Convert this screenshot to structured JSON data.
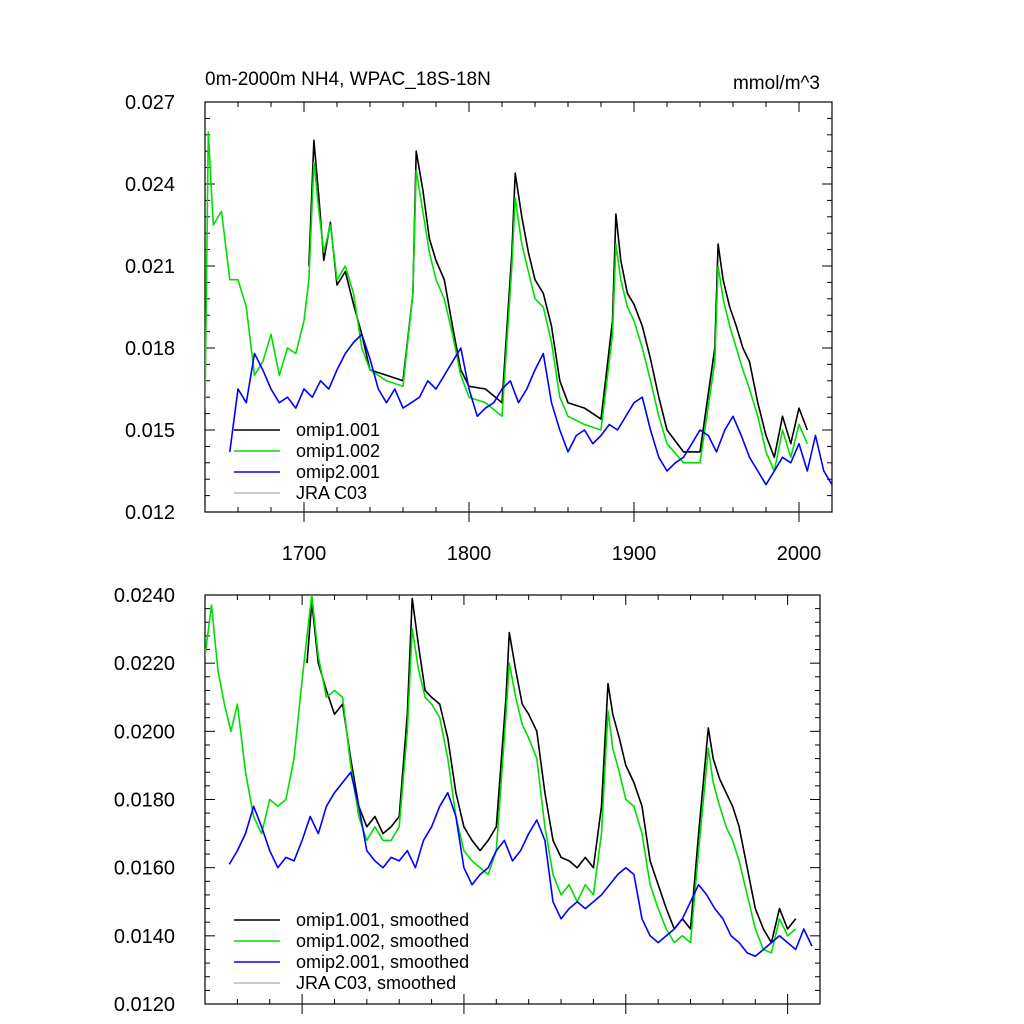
{
  "chart_data": [
    {
      "type": "line",
      "title_left": "0m-2000m NH4, WPAC_18S-18N",
      "title_right": "mmol/m^3",
      "xlim": [
        1640,
        2020
      ],
      "ylim": [
        0.012,
        0.027
      ],
      "yticks": [
        0.012,
        0.015,
        0.018,
        0.021,
        0.024,
        0.027
      ],
      "ytick_labels": [
        "0.012",
        "0.015",
        "0.018",
        "0.021",
        "0.024",
        "0.027"
      ],
      "xticks": [
        1700,
        1800,
        1900,
        2000
      ],
      "xtick_labels": [
        "1700",
        "1800",
        "1900",
        "2000"
      ],
      "legend": [
        "omip1.001",
        "omip1.002",
        "omip2.001",
        "JRA C03"
      ],
      "series": [
        {
          "name": "omip1.001",
          "color": "#000000",
          "x": [
            1703,
            1706,
            1709,
            1712,
            1716,
            1720,
            1725,
            1730,
            1735,
            1740,
            1750,
            1760,
            1766,
            1768,
            1772,
            1776,
            1780,
            1785,
            1790,
            1795,
            1800,
            1810,
            1820,
            1826,
            1828,
            1832,
            1836,
            1840,
            1845,
            1850,
            1855,
            1860,
            1870,
            1880,
            1887,
            1889,
            1892,
            1896,
            1900,
            1905,
            1910,
            1915,
            1920,
            1930,
            1940,
            1949,
            1951,
            1954,
            1958,
            1962,
            1966,
            1970,
            1975,
            1980,
            1985,
            1990,
            1995,
            2000,
            2005
          ],
          "values": [
            0.021,
            0.0256,
            0.0235,
            0.0212,
            0.0226,
            0.0203,
            0.0208,
            0.0196,
            0.0185,
            0.0172,
            0.017,
            0.0168,
            0.02,
            0.0252,
            0.0238,
            0.022,
            0.0212,
            0.0205,
            0.0188,
            0.0172,
            0.0166,
            0.0165,
            0.016,
            0.0215,
            0.0244,
            0.0228,
            0.0215,
            0.0205,
            0.02,
            0.0188,
            0.0168,
            0.016,
            0.0158,
            0.0154,
            0.019,
            0.0229,
            0.0212,
            0.02,
            0.0196,
            0.0188,
            0.0176,
            0.0162,
            0.015,
            0.0142,
            0.0142,
            0.018,
            0.0218,
            0.0205,
            0.0195,
            0.0188,
            0.018,
            0.0175,
            0.016,
            0.0148,
            0.014,
            0.0155,
            0.0145,
            0.0158,
            0.015
          ]
        },
        {
          "name": "omip1.002",
          "color": "#00dd00",
          "x": [
            1640,
            1642,
            1645,
            1650,
            1655,
            1660,
            1665,
            1670,
            1675,
            1680,
            1685,
            1690,
            1695,
            1700,
            1703,
            1706,
            1709,
            1712,
            1716,
            1720,
            1725,
            1730,
            1735,
            1740,
            1750,
            1760,
            1766,
            1768,
            1772,
            1776,
            1780,
            1785,
            1790,
            1795,
            1800,
            1810,
            1820,
            1826,
            1828,
            1832,
            1836,
            1840,
            1845,
            1850,
            1855,
            1860,
            1870,
            1880,
            1887,
            1889,
            1892,
            1896,
            1900,
            1905,
            1910,
            1915,
            1920,
            1930,
            1940,
            1949,
            1951,
            1954,
            1958,
            1962,
            1966,
            1970,
            1975,
            1980,
            1985,
            1990,
            1995,
            2000,
            2005
          ],
          "values": [
            0.0158,
            0.0259,
            0.0225,
            0.023,
            0.0205,
            0.0205,
            0.0195,
            0.017,
            0.0175,
            0.0185,
            0.017,
            0.018,
            0.0178,
            0.019,
            0.0205,
            0.0248,
            0.023,
            0.0215,
            0.0225,
            0.0205,
            0.021,
            0.02,
            0.018,
            0.0172,
            0.0168,
            0.0166,
            0.02,
            0.0245,
            0.023,
            0.0215,
            0.0205,
            0.0198,
            0.0185,
            0.017,
            0.0162,
            0.016,
            0.0155,
            0.021,
            0.0235,
            0.0218,
            0.0208,
            0.0198,
            0.0195,
            0.0182,
            0.0162,
            0.0155,
            0.0152,
            0.015,
            0.0185,
            0.0218,
            0.0205,
            0.0195,
            0.019,
            0.018,
            0.0168,
            0.0155,
            0.0145,
            0.0138,
            0.0138,
            0.0175,
            0.021,
            0.0198,
            0.0188,
            0.018,
            0.0172,
            0.0165,
            0.0155,
            0.0142,
            0.0135,
            0.015,
            0.014,
            0.0152,
            0.0145
          ]
        },
        {
          "name": "omip2.001",
          "color": "#0000ff",
          "x": [
            1655,
            1660,
            1665,
            1670,
            1675,
            1680,
            1685,
            1690,
            1695,
            1700,
            1705,
            1710,
            1715,
            1720,
            1725,
            1730,
            1735,
            1740,
            1745,
            1750,
            1755,
            1760,
            1765,
            1770,
            1775,
            1780,
            1785,
            1790,
            1795,
            1800,
            1805,
            1810,
            1815,
            1820,
            1825,
            1830,
            1835,
            1840,
            1845,
            1850,
            1855,
            1860,
            1865,
            1870,
            1875,
            1880,
            1885,
            1890,
            1895,
            1900,
            1905,
            1910,
            1915,
            1920,
            1925,
            1930,
            1935,
            1940,
            1945,
            1950,
            1955,
            1960,
            1965,
            1970,
            1975,
            1980,
            1985,
            1990,
            1995,
            2000,
            2005,
            2010,
            2015,
            2020
          ],
          "values": [
            0.0142,
            0.0165,
            0.016,
            0.0178,
            0.0172,
            0.0165,
            0.016,
            0.0162,
            0.0158,
            0.0165,
            0.0162,
            0.0168,
            0.0165,
            0.0172,
            0.0178,
            0.0182,
            0.0185,
            0.0176,
            0.0165,
            0.016,
            0.0165,
            0.0158,
            0.016,
            0.0162,
            0.0168,
            0.0165,
            0.017,
            0.0175,
            0.018,
            0.0165,
            0.0155,
            0.0158,
            0.016,
            0.0165,
            0.0168,
            0.016,
            0.0165,
            0.0172,
            0.0178,
            0.016,
            0.015,
            0.0142,
            0.0148,
            0.015,
            0.0145,
            0.0148,
            0.0152,
            0.015,
            0.0155,
            0.016,
            0.0162,
            0.015,
            0.014,
            0.0135,
            0.0138,
            0.014,
            0.0145,
            0.015,
            0.0148,
            0.0142,
            0.015,
            0.0155,
            0.0148,
            0.014,
            0.0135,
            0.013,
            0.0135,
            0.014,
            0.0138,
            0.0145,
            0.0135,
            0.0148,
            0.0135,
            0.013
          ]
        },
        {
          "name": "JRA C03",
          "color": "#bbbbbb",
          "x": [],
          "values": []
        }
      ]
    },
    {
      "type": "line",
      "title_left": "",
      "title_right": "",
      "xlim": [
        1640,
        2020
      ],
      "ylim": [
        0.012,
        0.024
      ],
      "yticks": [
        0.012,
        0.014,
        0.016,
        0.018,
        0.02,
        0.022,
        0.024
      ],
      "ytick_labels": [
        "0.0120",
        "0.0140",
        "0.0160",
        "0.0180",
        "0.0200",
        "0.0220",
        "0.0240"
      ],
      "xticks": [
        1700,
        1800,
        1900,
        2000
      ],
      "xtick_labels": [],
      "legend": [
        "omip1.001, smoothed",
        "omip1.002, smoothed",
        "omip2.001, smoothed",
        "JRA C03, smoothed"
      ],
      "series": [
        {
          "name": "omip1.001, smoothed",
          "color": "#000000",
          "x": [
            1703,
            1706,
            1710,
            1715,
            1720,
            1725,
            1730,
            1735,
            1740,
            1745,
            1750,
            1755,
            1760,
            1765,
            1768,
            1772,
            1776,
            1780,
            1785,
            1790,
            1795,
            1800,
            1805,
            1810,
            1815,
            1820,
            1826,
            1828,
            1832,
            1836,
            1840,
            1845,
            1850,
            1855,
            1860,
            1865,
            1870,
            1875,
            1880,
            1885,
            1889,
            1892,
            1896,
            1900,
            1905,
            1910,
            1915,
            1920,
            1925,
            1930,
            1935,
            1940,
            1945,
            1951,
            1954,
            1958,
            1962,
            1966,
            1970,
            1975,
            1980,
            1985,
            1990,
            1995,
            2000,
            2005
          ],
          "values": [
            0.022,
            0.0238,
            0.022,
            0.0212,
            0.0205,
            0.0208,
            0.0192,
            0.0178,
            0.0172,
            0.0175,
            0.017,
            0.0172,
            0.0175,
            0.0205,
            0.0239,
            0.0225,
            0.0212,
            0.021,
            0.0208,
            0.0198,
            0.0182,
            0.0172,
            0.0168,
            0.0165,
            0.0168,
            0.0172,
            0.021,
            0.0229,
            0.0218,
            0.0208,
            0.0205,
            0.02,
            0.0182,
            0.0168,
            0.0163,
            0.0162,
            0.016,
            0.0163,
            0.016,
            0.0178,
            0.0214,
            0.0205,
            0.0198,
            0.019,
            0.0185,
            0.0178,
            0.0162,
            0.0155,
            0.0148,
            0.0142,
            0.0145,
            0.0142,
            0.017,
            0.0201,
            0.0192,
            0.0186,
            0.0182,
            0.0178,
            0.0172,
            0.016,
            0.0148,
            0.0142,
            0.0138,
            0.0148,
            0.0142,
            0.0145
          ]
        },
        {
          "name": "omip1.002, smoothed",
          "color": "#00dd00",
          "x": [
            1640,
            1644,
            1648,
            1652,
            1656,
            1660,
            1665,
            1670,
            1675,
            1680,
            1685,
            1690,
            1695,
            1700,
            1703,
            1706,
            1710,
            1715,
            1720,
            1725,
            1730,
            1735,
            1740,
            1745,
            1750,
            1755,
            1760,
            1765,
            1768,
            1772,
            1776,
            1780,
            1785,
            1790,
            1795,
            1800,
            1805,
            1810,
            1815,
            1820,
            1826,
            1828,
            1832,
            1836,
            1840,
            1845,
            1850,
            1855,
            1860,
            1865,
            1870,
            1875,
            1880,
            1885,
            1889,
            1892,
            1896,
            1900,
            1905,
            1910,
            1915,
            1920,
            1925,
            1930,
            1935,
            1940,
            1945,
            1951,
            1954,
            1958,
            1962,
            1966,
            1970,
            1975,
            1980,
            1985,
            1990,
            1995,
            2000,
            2005
          ],
          "values": [
            0.0222,
            0.0237,
            0.0218,
            0.0208,
            0.02,
            0.0208,
            0.0188,
            0.0175,
            0.017,
            0.018,
            0.0178,
            0.018,
            0.0192,
            0.0215,
            0.0228,
            0.024,
            0.0222,
            0.021,
            0.0212,
            0.021,
            0.019,
            0.0175,
            0.0168,
            0.0172,
            0.0168,
            0.0168,
            0.0172,
            0.02,
            0.023,
            0.0218,
            0.021,
            0.0208,
            0.0204,
            0.0192,
            0.0175,
            0.0165,
            0.0162,
            0.016,
            0.0158,
            0.0165,
            0.0205,
            0.022,
            0.021,
            0.0202,
            0.0198,
            0.0192,
            0.0172,
            0.0158,
            0.0152,
            0.0155,
            0.015,
            0.0155,
            0.0152,
            0.017,
            0.0206,
            0.0195,
            0.0188,
            0.018,
            0.0178,
            0.017,
            0.0155,
            0.0148,
            0.0142,
            0.0138,
            0.014,
            0.0138,
            0.0165,
            0.0195,
            0.0185,
            0.0178,
            0.0172,
            0.0168,
            0.0162,
            0.0152,
            0.0142,
            0.0136,
            0.0135,
            0.0145,
            0.014,
            0.0142
          ]
        },
        {
          "name": "omip2.001, smoothed",
          "color": "#0000ff",
          "x": [
            1655,
            1660,
            1665,
            1670,
            1675,
            1680,
            1685,
            1690,
            1695,
            1700,
            1705,
            1710,
            1715,
            1720,
            1725,
            1730,
            1735,
            1740,
            1745,
            1750,
            1755,
            1760,
            1765,
            1770,
            1775,
            1780,
            1785,
            1790,
            1795,
            1800,
            1805,
            1810,
            1815,
            1820,
            1825,
            1830,
            1835,
            1840,
            1845,
            1850,
            1855,
            1860,
            1865,
            1870,
            1875,
            1880,
            1885,
            1890,
            1895,
            1900,
            1905,
            1910,
            1915,
            1920,
            1925,
            1930,
            1935,
            1940,
            1945,
            1950,
            1955,
            1960,
            1965,
            1970,
            1975,
            1980,
            1985,
            1990,
            1995,
            2000,
            2005,
            2010,
            2015
          ],
          "values": [
            0.0161,
            0.0165,
            0.017,
            0.0178,
            0.0172,
            0.0165,
            0.016,
            0.0163,
            0.0162,
            0.0168,
            0.0175,
            0.017,
            0.0178,
            0.0182,
            0.0185,
            0.0188,
            0.0178,
            0.0165,
            0.0162,
            0.016,
            0.0163,
            0.0162,
            0.0165,
            0.016,
            0.0168,
            0.0172,
            0.0178,
            0.0182,
            0.0175,
            0.016,
            0.0155,
            0.0158,
            0.016,
            0.0165,
            0.0168,
            0.0162,
            0.0165,
            0.017,
            0.0174,
            0.0168,
            0.015,
            0.0145,
            0.0148,
            0.015,
            0.0148,
            0.015,
            0.0152,
            0.0155,
            0.0158,
            0.016,
            0.0158,
            0.0145,
            0.014,
            0.0138,
            0.014,
            0.0142,
            0.0145,
            0.015,
            0.0155,
            0.0152,
            0.0148,
            0.0145,
            0.014,
            0.0138,
            0.0135,
            0.0134,
            0.0136,
            0.0138,
            0.014,
            0.0138,
            0.0136,
            0.0142,
            0.0137
          ]
        },
        {
          "name": "JRA C03, smoothed",
          "color": "#bbbbbb",
          "x": [],
          "values": []
        }
      ]
    }
  ]
}
